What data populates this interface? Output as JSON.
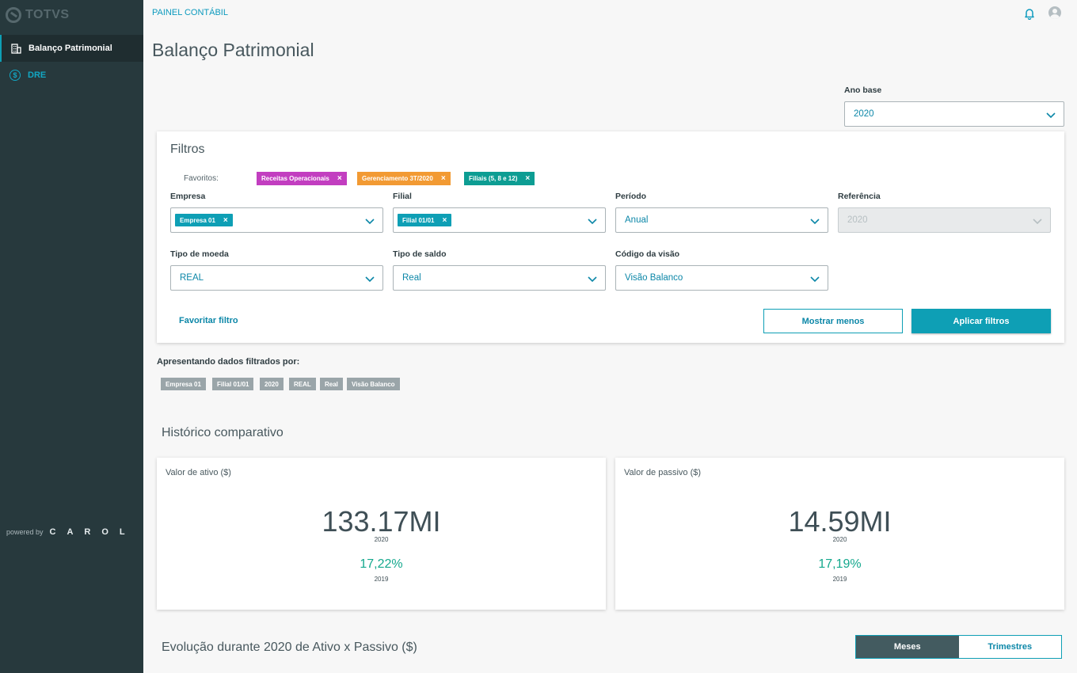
{
  "sidebar": {
    "logo": "TOTVS",
    "items": [
      {
        "label": "Balanço Patrimonial",
        "icon": "building-icon"
      },
      {
        "label": "DRE",
        "icon": "dollar-circle-icon"
      }
    ],
    "powered_by": "powered by",
    "carol": "CAROL"
  },
  "header": {
    "breadcrumb": "PAINEL CONTÁBIL",
    "title": "Balanço Patrimonial"
  },
  "ano_base": {
    "label": "Ano base",
    "value": "2020"
  },
  "filters": {
    "title": "Filtros",
    "favorites_label": "Favoritos:",
    "favorites": [
      {
        "label": "Receitas Operacionais",
        "color": "#c23ec0"
      },
      {
        "label": "Gerenciamento 3T/2020",
        "color": "#f29a33"
      },
      {
        "label": "Filiais (5, 8 e 12)",
        "color": "#0d9d93"
      }
    ],
    "empresa": {
      "label": "Empresa",
      "tag": "Empresa 01"
    },
    "filial": {
      "label": "Filial",
      "tag": "Filial 01/01"
    },
    "periodo": {
      "label": "Período",
      "value": "Anual"
    },
    "referencia": {
      "label": "Referência",
      "value": "2020"
    },
    "tipo_moeda": {
      "label": "Tipo de moeda",
      "value": "REAL"
    },
    "tipo_saldo": {
      "label": "Tipo de saldo",
      "value": "Real"
    },
    "codigo_visao": {
      "label": "Código da visão",
      "value": "Visão Balanco"
    },
    "favoritar": "Favoritar filtro",
    "mostrar_menos": "Mostrar menos",
    "aplicar": "Aplicar filtros"
  },
  "applied": {
    "label": "Apresentando dados filtrados por:",
    "chips": [
      "Empresa 01",
      "Filial 01/01",
      "2020",
      "REAL",
      "Real",
      "Visão Balanco"
    ]
  },
  "historico": {
    "title": "Histórico comparativo",
    "ativo": {
      "label": "Valor de ativo ($)",
      "value": "133.17MI",
      "year": "2020",
      "pct": "17,22%",
      "prev_year": "2019"
    },
    "passivo": {
      "label": "Valor de passivo ($)",
      "value": "14.59MI",
      "year": "2020",
      "pct": "17,19%",
      "prev_year": "2019"
    }
  },
  "evolucao": {
    "title": "Evolução durante 2020 de Ativo x Passivo ($)",
    "options": [
      "Meses",
      "Trimestres"
    ],
    "selected": "Meses"
  },
  "colors": {
    "accent": "#0e9fb5",
    "sidebar": "#27393d",
    "positive": "#14a88d"
  }
}
